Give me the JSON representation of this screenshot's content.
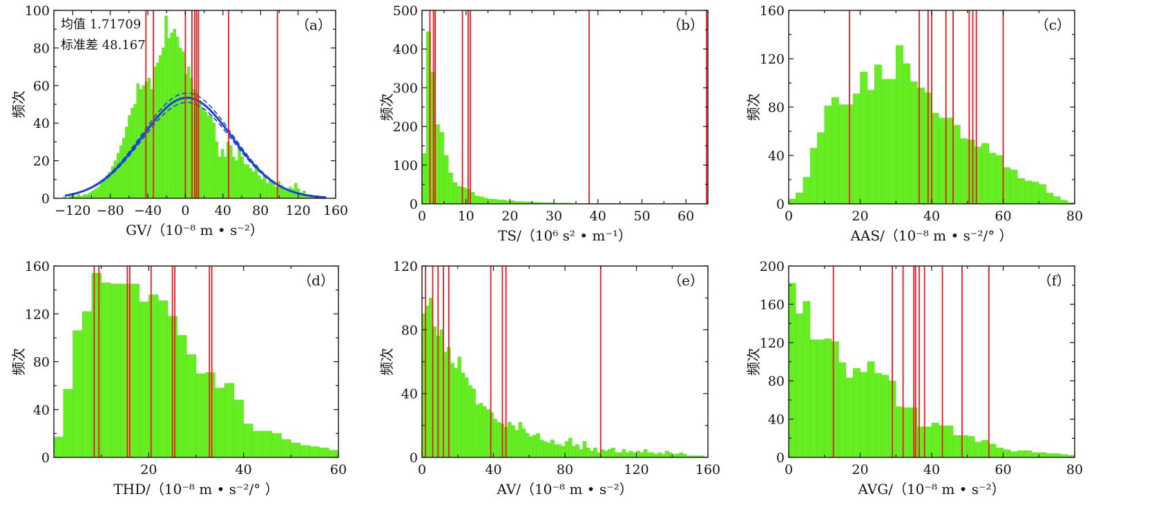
{
  "colors": {
    "bar": "#66EE22",
    "bar_edge": "#4FD619",
    "vline": "#E8191E",
    "fit": "#1B3FE0",
    "axis": "#111111"
  },
  "chart_data": [
    {
      "id": "a",
      "type": "bar",
      "panel_label": "（a）",
      "xlabel": "GV/（10⁻⁸ m • s⁻²）",
      "ylabel": "频次",
      "xlim": [
        -140,
        160
      ],
      "ylim": [
        0,
        100
      ],
      "xticks": [
        -120,
        -80,
        -40,
        0,
        40,
        80,
        120,
        160
      ],
      "xtick_labels": [
        "−120",
        "−80",
        "−40",
        "0",
        "40",
        "80",
        "120",
        "160"
      ],
      "yticks": [
        0,
        20,
        40,
        60,
        80,
        100
      ],
      "ytick_labels": [
        "0",
        "20",
        "40",
        "60",
        "80",
        "100"
      ],
      "stats": [
        "均值 1.71709",
        "标准差 48.167"
      ],
      "bin_width": 3,
      "bin_start": -130,
      "values": [
        1,
        0,
        1,
        2,
        1,
        2,
        1,
        2,
        2,
        3,
        4,
        5,
        6,
        8,
        10,
        12,
        14,
        17,
        20,
        24,
        28,
        32,
        38,
        44,
        48,
        50,
        61,
        58,
        60,
        62,
        64,
        58,
        70,
        72,
        76,
        80,
        97,
        85,
        88,
        90,
        86,
        80,
        78,
        66,
        70,
        64,
        58,
        56,
        52,
        48,
        46,
        44,
        44,
        40,
        30,
        22,
        26,
        22,
        30,
        28,
        22,
        20,
        26,
        22,
        18,
        18,
        16,
        14,
        18,
        12,
        10,
        12,
        8,
        10,
        8,
        6,
        9,
        7,
        5,
        4,
        6,
        5,
        8,
        5,
        3,
        4,
        2,
        2,
        1,
        1,
        1,
        1,
        0
      ],
      "vlines": [
        -42,
        -34,
        0,
        7,
        10,
        12,
        14,
        46,
        98
      ],
      "fit": {
        "mean": 1.71709,
        "std": 48.167,
        "peak": 53.5,
        "band": 2.5,
        "x_range": [
          -128,
          150
        ]
      }
    },
    {
      "id": "b",
      "type": "bar",
      "panel_label": "（b）",
      "xlabel": "TS/（10⁶ s² • m⁻¹）",
      "ylabel": "频次",
      "xlim": [
        0,
        65
      ],
      "ylim": [
        0,
        500
      ],
      "xticks": [
        0,
        10,
        20,
        30,
        40,
        50,
        60
      ],
      "xtick_labels": [
        "0",
        "10",
        "20",
        "30",
        "40",
        "50",
        "60"
      ],
      "yticks": [
        0,
        100,
        200,
        300,
        400,
        500
      ],
      "ytick_labels": [
        "0",
        "100",
        "200",
        "300",
        "400",
        "500"
      ],
      "bin_width": 1,
      "bin_start": 0,
      "values": [
        130,
        445,
        340,
        205,
        185,
        125,
        80,
        55,
        45,
        42,
        38,
        30,
        20,
        18,
        15,
        12,
        12,
        10,
        10,
        8,
        8,
        6,
        6,
        5,
        5,
        4,
        4,
        3,
        3,
        3,
        2,
        2,
        2,
        2,
        1,
        1,
        1,
        1,
        1,
        1,
        1,
        1,
        1,
        1,
        1,
        1,
        1,
        1,
        1,
        1,
        1,
        1,
        1,
        1,
        1,
        1,
        1,
        1,
        1,
        1,
        1,
        1,
        1,
        1,
        1
      ],
      "vlines": [
        1.8,
        2.6,
        3.0,
        9.2,
        10.5,
        11.0,
        38.0,
        64.7
      ]
    },
    {
      "id": "c",
      "type": "bar",
      "panel_label": "（c）",
      "xlabel": "AAS/（10⁻⁸ m • s⁻²/° ）",
      "ylabel": "频次",
      "xlim": [
        0,
        80
      ],
      "ylim": [
        0,
        160
      ],
      "xticks": [
        0,
        20,
        40,
        60,
        80
      ],
      "xtick_labels": [
        "0",
        "20",
        "40",
        "60",
        "80"
      ],
      "yticks": [
        0,
        40,
        80,
        120,
        160
      ],
      "ytick_labels": [
        "0",
        "40",
        "80",
        "120",
        "160"
      ],
      "bin_width": 2,
      "bin_start": 0,
      "values": [
        4,
        9,
        22,
        46,
        59,
        81,
        88,
        82,
        82,
        91,
        109,
        94,
        115,
        103,
        103,
        131,
        116,
        101,
        96,
        92,
        75,
        71,
        71,
        65,
        54,
        53,
        47,
        50,
        42,
        40,
        30,
        28,
        21,
        19,
        18,
        16,
        9,
        6,
        3,
        1
      ],
      "vlines": [
        17,
        36.5,
        39,
        40,
        44,
        46,
        50.5,
        51.5,
        52.5,
        60
      ]
    },
    {
      "id": "d",
      "type": "bar",
      "panel_label": "（d）",
      "xlabel": "THD/（10⁻⁸ m • s⁻²/° ）",
      "ylabel": "频次",
      "xlim": [
        0,
        60
      ],
      "ylim": [
        0,
        160
      ],
      "xticks": [
        20,
        40,
        60
      ],
      "xtick_labels": [
        "20",
        "40",
        "60"
      ],
      "yticks": [
        0,
        40,
        80,
        120,
        160
      ],
      "ytick_labels": [
        "0",
        "40",
        "80",
        "120",
        "160"
      ],
      "bin_width": 2,
      "bin_start": 0,
      "values": [
        17,
        57,
        106,
        122,
        154,
        146,
        145,
        145,
        145,
        130,
        136,
        131,
        118,
        102,
        86,
        70,
        71,
        58,
        62,
        48,
        28,
        22,
        22,
        20,
        15,
        12,
        10,
        9,
        8,
        6
      ],
      "vlines": [
        8.5,
        9.5,
        15.5,
        16,
        20.5,
        25,
        25.5,
        32.8,
        33.3
      ]
    },
    {
      "id": "e",
      "type": "bar",
      "panel_label": "（e）",
      "xlabel": "AV/（10⁻⁸ m • s⁻²）",
      "ylabel": "频次",
      "xlim": [
        0,
        160
      ],
      "ylim": [
        0,
        120
      ],
      "xticks": [
        0,
        40,
        80,
        120,
        160
      ],
      "xtick_labels": [
        "0",
        "40",
        "80",
        "120",
        "160"
      ],
      "yticks": [
        0,
        40,
        80,
        120
      ],
      "ytick_labels": [
        "0",
        "40",
        "80",
        "120"
      ],
      "bin_width": 2,
      "bin_start": 0,
      "values": [
        90,
        95,
        100,
        82,
        76,
        80,
        66,
        69,
        59,
        56,
        63,
        53,
        50,
        45,
        43,
        33,
        34,
        32,
        30,
        28,
        24,
        22,
        21,
        19,
        22,
        20,
        17,
        22,
        18,
        15,
        13,
        14,
        15,
        11,
        10,
        9,
        11,
        8,
        8,
        7,
        10,
        12,
        7,
        8,
        5,
        10,
        6,
        4,
        6,
        3,
        5,
        4,
        5,
        6,
        3,
        3,
        5,
        3,
        4,
        3,
        4,
        3,
        5,
        3,
        3,
        2,
        3,
        2,
        4,
        3,
        2,
        2,
        3,
        2,
        1,
        1,
        1,
        1,
        1,
        0
      ],
      "vlines": [
        2,
        6,
        9,
        12,
        15,
        38.5,
        45,
        47,
        100
      ]
    },
    {
      "id": "f",
      "type": "bar",
      "panel_label": "（f）",
      "xlabel": "AVG/（10⁻⁸ m • s⁻²）",
      "ylabel": "频次",
      "xlim": [
        0,
        80
      ],
      "ylim": [
        0,
        200
      ],
      "xticks": [
        0,
        20,
        40,
        60,
        80
      ],
      "xtick_labels": [
        "0",
        "20",
        "40",
        "60",
        "80"
      ],
      "yticks": [
        0,
        40,
        80,
        120,
        160,
        200
      ],
      "ytick_labels": [
        "0",
        "40",
        "80",
        "120",
        "160",
        "200"
      ],
      "bin_width": 2,
      "bin_start": 0,
      "values": [
        182,
        150,
        163,
        123,
        123,
        124,
        121,
        99,
        83,
        93,
        89,
        100,
        88,
        86,
        80,
        53,
        52,
        52,
        32,
        32,
        36,
        33,
        33,
        23,
        23,
        22,
        16,
        18,
        14,
        10,
        8,
        6,
        7,
        7,
        5,
        5,
        4,
        4,
        3,
        2
      ],
      "vlines": [
        12.5,
        29,
        32,
        35,
        35.5,
        36.5,
        38,
        43,
        48.5,
        56
      ]
    }
  ]
}
